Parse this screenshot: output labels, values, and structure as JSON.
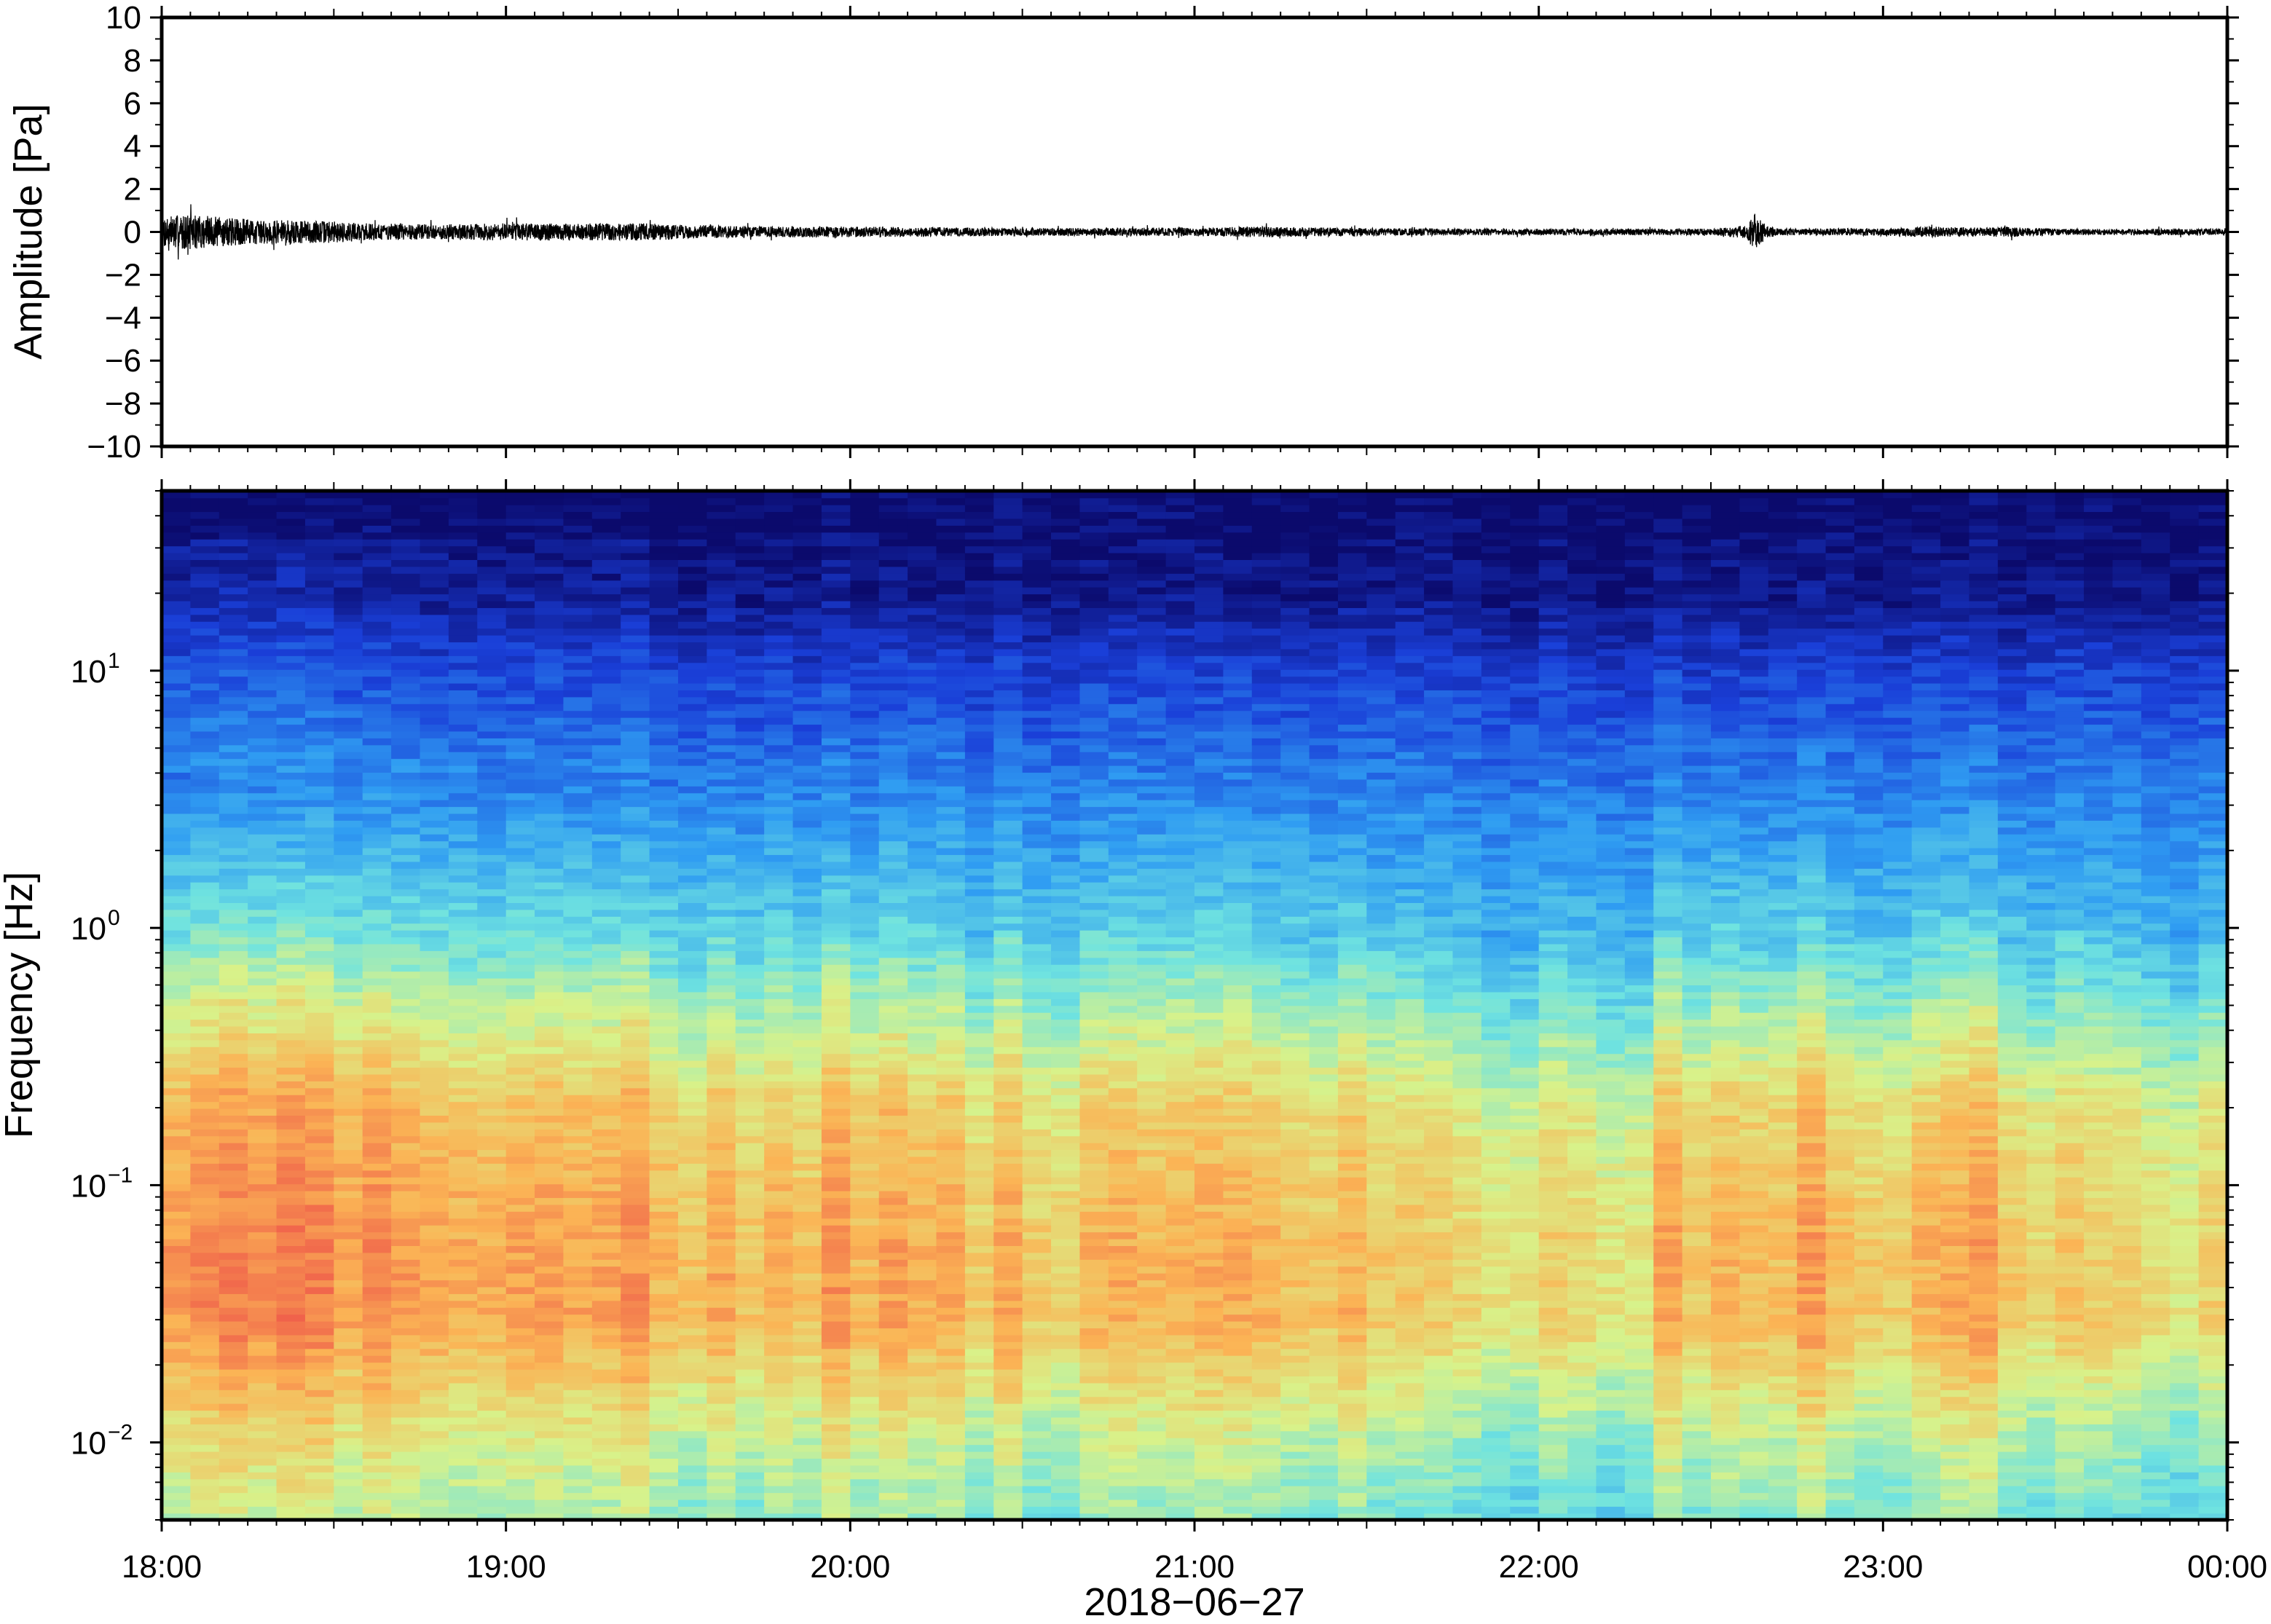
{
  "chart_data": [
    {
      "type": "line",
      "panel": "waveform",
      "ylabel": "Amplitude [Pa]",
      "ylim": [
        -10,
        10
      ],
      "y_ticks": [
        {
          "value": 10,
          "label": "10"
        },
        {
          "value": 8,
          "label": "8"
        },
        {
          "value": 6,
          "label": "6"
        },
        {
          "value": 4,
          "label": "4"
        },
        {
          "value": 2,
          "label": "2"
        },
        {
          "value": 0,
          "label": "0"
        },
        {
          "value": -2,
          "label": "−2"
        },
        {
          "value": -4,
          "label": "−4"
        },
        {
          "value": -6,
          "label": "−6"
        },
        {
          "value": -8,
          "label": "−8"
        },
        {
          "value": -10,
          "label": "−10"
        }
      ],
      "xlim_hours": [
        18,
        24
      ],
      "envelope": {
        "hours": [
          18.0,
          18.1,
          18.2,
          18.3,
          18.4,
          18.5,
          18.6,
          18.8,
          19.0,
          19.2,
          19.4,
          19.5,
          19.7,
          20.0,
          20.5,
          21.0,
          21.2,
          21.5,
          22.0,
          22.5,
          22.6,
          22.63,
          22.66,
          22.7,
          23.0,
          23.15,
          23.3,
          23.35,
          23.5,
          24.0
        ],
        "amp_pa": [
          0.8,
          0.8,
          0.65,
          0.55,
          0.55,
          0.5,
          0.4,
          0.35,
          0.4,
          0.4,
          0.4,
          0.35,
          0.25,
          0.25,
          0.18,
          0.2,
          0.25,
          0.18,
          0.15,
          0.15,
          0.3,
          0.9,
          0.3,
          0.15,
          0.18,
          0.25,
          0.2,
          0.25,
          0.15,
          0.15
        ]
      }
    },
    {
      "type": "heatmap",
      "panel": "spectrogram",
      "ylabel": "Frequency [Hz]",
      "y_scale": "log",
      "ylim_hz": [
        0.005,
        50
      ],
      "y_ticks": [
        {
          "value": 0.01,
          "base": "10",
          "exp": "−2"
        },
        {
          "value": 0.1,
          "base": "10",
          "exp": "−1"
        },
        {
          "value": 1,
          "base": "10",
          "exp": "0"
        },
        {
          "value": 10,
          "base": "10",
          "exp": "1"
        }
      ],
      "xlabel": "2018−06−27",
      "xlim_hours": [
        18,
        24
      ],
      "x_ticks": [
        {
          "value": 18,
          "label": "18:00"
        },
        {
          "value": 19,
          "label": "19:00"
        },
        {
          "value": 20,
          "label": "20:00"
        },
        {
          "value": 21,
          "label": "21:00"
        },
        {
          "value": 22,
          "label": "22:00"
        },
        {
          "value": 23,
          "label": "23:00"
        },
        {
          "value": 24,
          "label": "00:00"
        }
      ],
      "colormap": [
        "#0b0a6c",
        "#1a3fd8",
        "#2f9cf2",
        "#6fe3e0",
        "#d8f28a",
        "#fbb455",
        "#ef5a4a"
      ],
      "level_breakpoints": {
        "hz": [
          0.005,
          0.01,
          0.03,
          0.06,
          0.2,
          0.5,
          1.0,
          3.0,
          10,
          20,
          50
        ],
        "level": [
          0.52,
          0.6,
          0.78,
          0.78,
          0.72,
          0.55,
          0.42,
          0.3,
          0.16,
          0.04,
          0.0
        ]
      },
      "activity_hours": [
        [
          18.0,
          18.6,
          1.0
        ],
        [
          18.6,
          19.5,
          0.75
        ],
        [
          19.5,
          20.3,
          0.45
        ],
        [
          20.3,
          21.0,
          0.15
        ],
        [
          21.0,
          21.5,
          0.45
        ],
        [
          21.5,
          22.3,
          -0.2
        ],
        [
          22.3,
          22.5,
          0.2
        ],
        [
          22.5,
          22.8,
          0.6
        ],
        [
          22.8,
          23.05,
          0.0
        ],
        [
          23.05,
          23.4,
          0.35
        ],
        [
          23.4,
          24.0,
          -0.25
        ]
      ]
    }
  ]
}
